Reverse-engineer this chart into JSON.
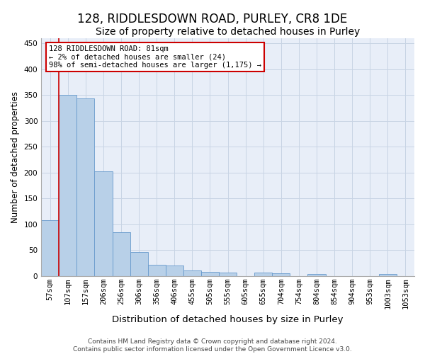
{
  "title": "128, RIDDLESDOWN ROAD, PURLEY, CR8 1DE",
  "subtitle": "Size of property relative to detached houses in Purley",
  "xlabel": "Distribution of detached houses by size in Purley",
  "ylabel": "Number of detached properties",
  "bin_labels": [
    "57sqm",
    "107sqm",
    "157sqm",
    "206sqm",
    "256sqm",
    "306sqm",
    "356sqm",
    "406sqm",
    "455sqm",
    "505sqm",
    "555sqm",
    "605sqm",
    "655sqm",
    "704sqm",
    "754sqm",
    "804sqm",
    "854sqm",
    "904sqm",
    "953sqm",
    "1003sqm",
    "1053sqm"
  ],
  "bar_values": [
    108,
    350,
    343,
    202,
    84,
    46,
    22,
    20,
    10,
    8,
    6,
    0,
    7,
    5,
    0,
    3,
    0,
    0,
    0,
    3,
    0
  ],
  "bar_color": "#b8d0e8",
  "bar_edge_color": "#6699cc",
  "annotation_box_text": "128 RIDDLESDOWN ROAD: 81sqm\n← 2% of detached houses are smaller (24)\n98% of semi-detached houses are larger (1,175) →",
  "annotation_box_edge_color": "#cc0000",
  "annotation_box_facecolor": "#ffffff",
  "ylim": [
    0,
    460
  ],
  "yticks": [
    0,
    50,
    100,
    150,
    200,
    250,
    300,
    350,
    400,
    450
  ],
  "grid_color": "#c8d4e4",
  "background_color": "#e8eef8",
  "footer_text": "Contains HM Land Registry data © Crown copyright and database right 2024.\nContains public sector information licensed under the Open Government Licence v3.0.",
  "title_fontsize": 12,
  "subtitle_fontsize": 10,
  "xlabel_fontsize": 9.5,
  "ylabel_fontsize": 8.5,
  "tick_fontsize": 7.5,
  "annotation_fontsize": 7.5,
  "footer_fontsize": 6.5
}
